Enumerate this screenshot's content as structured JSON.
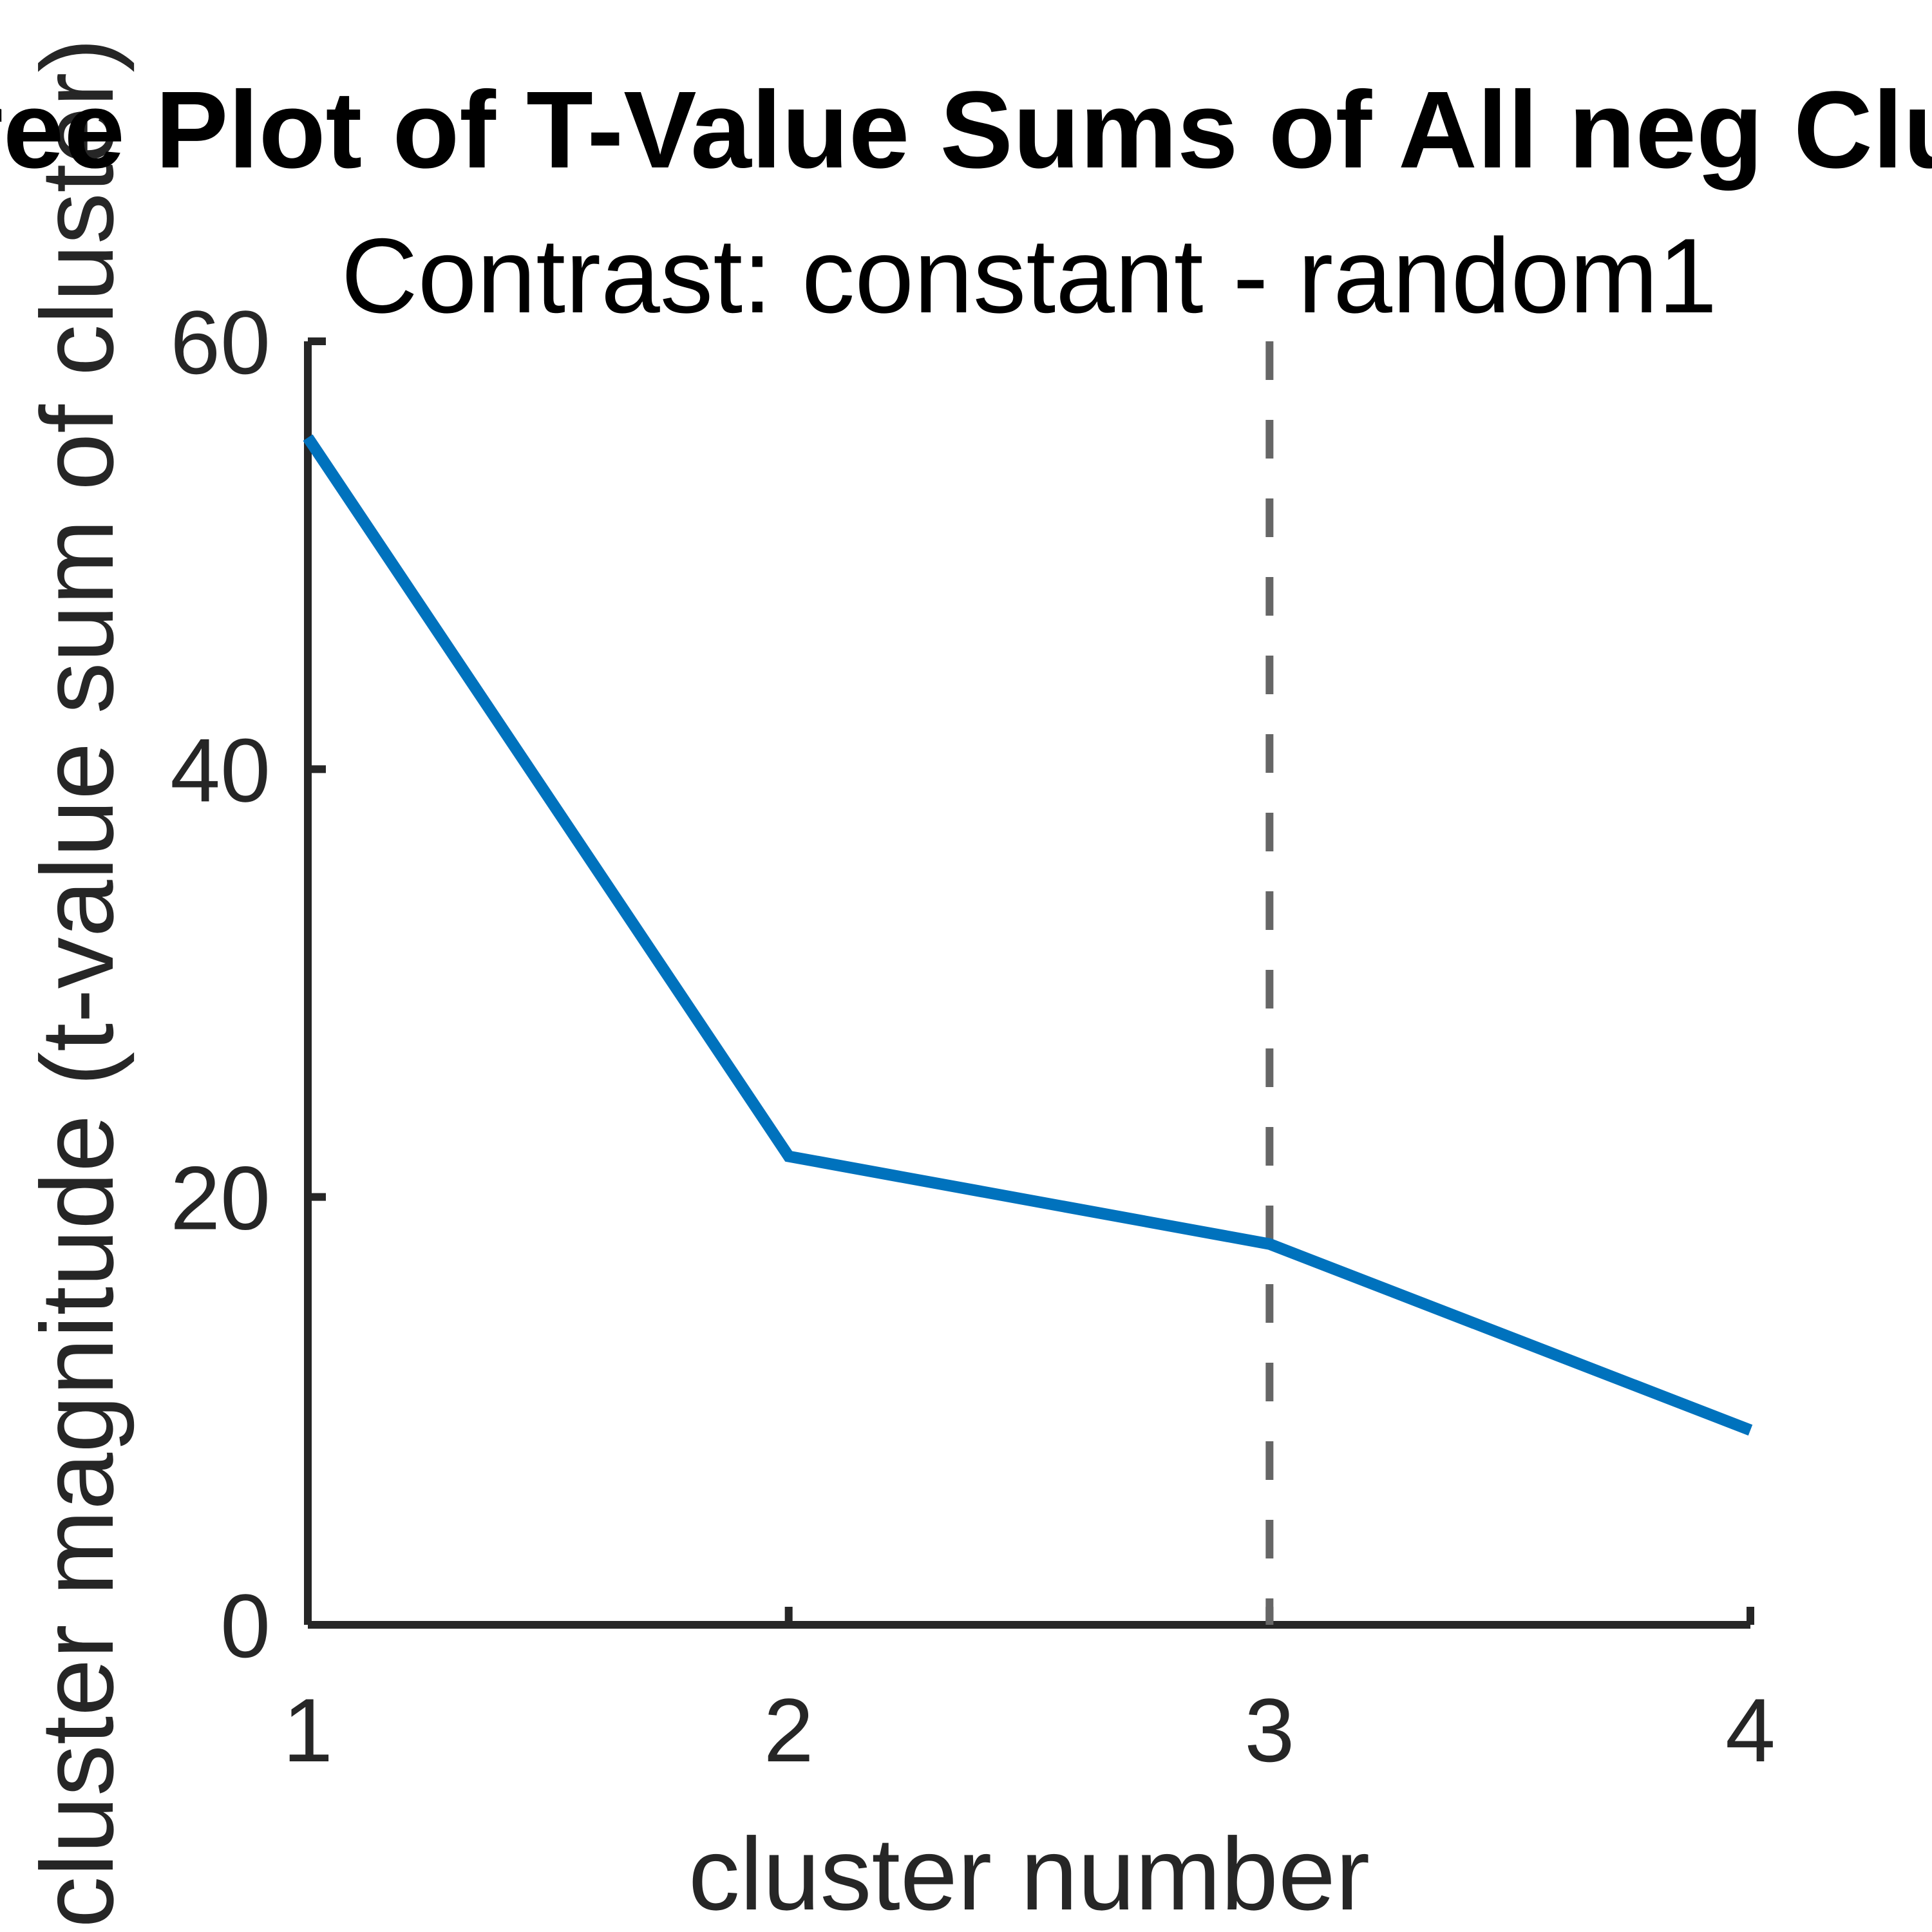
{
  "chart_data": {
    "type": "line",
    "title": "Scree Plot of T-Value Sums of All neg Clusters",
    "subtitle": "Contrast: constant - random1",
    "xlabel": "cluster number",
    "ylabel": "cluster magnitude (t-value sum of cluster)",
    "x": [
      1,
      2,
      3,
      4
    ],
    "series": [
      {
        "values": [
          55.5,
          21.9,
          17.8,
          9.1
        ],
        "color": "#0072BD"
      }
    ],
    "xlim": [
      1,
      4
    ],
    "ylim": [
      0,
      60
    ],
    "xticks": [
      1,
      2,
      3,
      4
    ],
    "yticks": [
      0,
      20,
      40,
      60
    ],
    "reference_line": {
      "orientation": "vertical",
      "x": 3,
      "style": "dashed",
      "color": "#666666"
    },
    "grid": false,
    "legend": "none"
  }
}
